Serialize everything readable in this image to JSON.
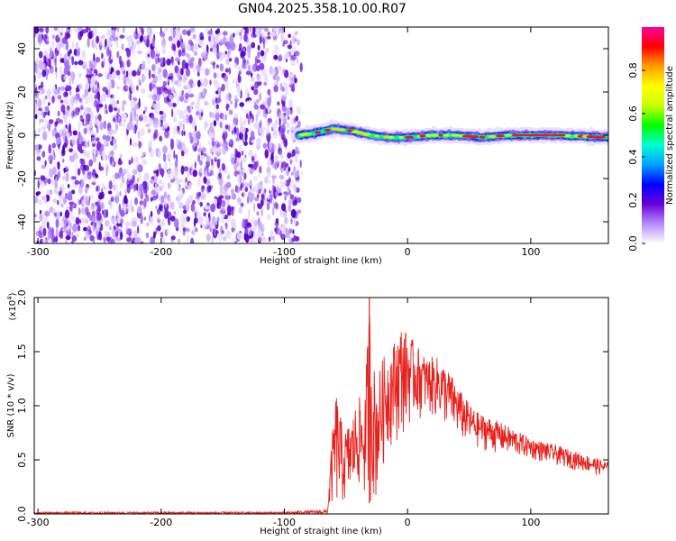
{
  "title": "GN04.2025.358.10.00.R07",
  "chart_data": [
    {
      "type": "heatmap",
      "title": "GN04.2025.358.10.00.R07",
      "xlabel": "Height of straight line (km)",
      "ylabel": "Frequency (Hz)",
      "xlim": [
        -303,
        163
      ],
      "ylim": [
        -50,
        50
      ],
      "x_ticks": [
        -300,
        -200,
        -100,
        0,
        100
      ],
      "y_ticks": [
        -40,
        -20,
        0,
        20,
        40
      ],
      "x_tick_labels": [
        "-300",
        "-200",
        "-100",
        "0",
        "100"
      ],
      "y_tick_labels": [
        "-40",
        "-20",
        "0",
        "20",
        "40"
      ],
      "noise_region_x": [
        -303,
        -88
      ],
      "ridge": {
        "x_start": -88,
        "x_end": 163,
        "center_hz": [
          {
            "x": -88,
            "hz": 0
          },
          {
            "x": -75,
            "hz": 1
          },
          {
            "x": -60,
            "hz": 3
          },
          {
            "x": -45,
            "hz": 2
          },
          {
            "x": -30,
            "hz": 0
          },
          {
            "x": -15,
            "hz": -1
          },
          {
            "x": 0,
            "hz": -1
          },
          {
            "x": 20,
            "hz": 0
          },
          {
            "x": 40,
            "hz": 0
          },
          {
            "x": 60,
            "hz": -1
          },
          {
            "x": 80,
            "hz": 0
          },
          {
            "x": 120,
            "hz": 0
          },
          {
            "x": 163,
            "hz": -1
          }
        ]
      },
      "colorbar": {
        "label": "Normalized spectral amplitude",
        "range": [
          0,
          1
        ],
        "ticks": [
          0.0,
          0.2,
          0.4,
          0.6,
          0.8
        ],
        "tick_labels": [
          "0.0",
          "0.2",
          "0.4",
          "0.6",
          "0.8"
        ],
        "colors": [
          "#ffffff",
          "#b48cff",
          "#6a00d8",
          "#0000ff",
          "#00a0ff",
          "#00ffd0",
          "#00ff00",
          "#c8ff00",
          "#ffff00",
          "#ffa000",
          "#ff0000",
          "#ff00a0"
        ]
      },
      "grid": false
    },
    {
      "type": "line",
      "xlabel": "Height of straight line (km)",
      "ylabel": "SNR (10 * v/v)",
      "y_multiplier_label": "(x10",
      "y_multiplier_exp": "4",
      "y_multiplier_close": ")",
      "xlim": [
        -303,
        163
      ],
      "ylim": [
        0,
        2.0
      ],
      "x_ticks": [
        -300,
        -200,
        -100,
        0,
        100
      ],
      "y_ticks": [
        0.0,
        0.5,
        1.0,
        1.5,
        2.0
      ],
      "x_tick_labels": [
        "-300",
        "-200",
        "-100",
        "0",
        "100"
      ],
      "y_tick_labels": [
        "0.0",
        "0.5",
        "1.0",
        "1.5",
        "2.0"
      ],
      "series": [
        {
          "color": "#e8201c",
          "envelope": [
            {
              "x": -303,
              "lo": 0.0,
              "hi": 0.02
            },
            {
              "x": -100,
              "lo": 0.0,
              "hi": 0.02
            },
            {
              "x": -65,
              "lo": 0.0,
              "hi": 0.04
            },
            {
              "x": -62,
              "lo": 0.05,
              "hi": 0.6
            },
            {
              "x": -58,
              "lo": 0.0,
              "hi": 1.15
            },
            {
              "x": -52,
              "lo": 0.05,
              "hi": 0.75
            },
            {
              "x": -45,
              "lo": 0.1,
              "hi": 0.9
            },
            {
              "x": -40,
              "lo": 0.2,
              "hi": 1.1
            },
            {
              "x": -35,
              "lo": 0.1,
              "hi": 1.0
            },
            {
              "x": -31,
              "lo": 0.1,
              "hi": 2.0
            },
            {
              "x": -26,
              "lo": 0.05,
              "hi": 1.2
            },
            {
              "x": -20,
              "lo": 0.4,
              "hi": 1.45
            },
            {
              "x": -15,
              "lo": 0.6,
              "hi": 1.5
            },
            {
              "x": -5,
              "lo": 0.7,
              "hi": 1.75
            },
            {
              "x": 5,
              "lo": 0.85,
              "hi": 1.6
            },
            {
              "x": 15,
              "lo": 0.9,
              "hi": 1.45
            },
            {
              "x": 25,
              "lo": 0.85,
              "hi": 1.45
            },
            {
              "x": 35,
              "lo": 0.75,
              "hi": 1.3
            },
            {
              "x": 45,
              "lo": 0.65,
              "hi": 1.1
            },
            {
              "x": 55,
              "lo": 0.6,
              "hi": 0.95
            },
            {
              "x": 75,
              "lo": 0.55,
              "hi": 0.85
            },
            {
              "x": 100,
              "lo": 0.5,
              "hi": 0.7
            },
            {
              "x": 130,
              "lo": 0.42,
              "hi": 0.6
            },
            {
              "x": 163,
              "lo": 0.33,
              "hi": 0.48
            }
          ]
        }
      ],
      "grid": false
    }
  ]
}
